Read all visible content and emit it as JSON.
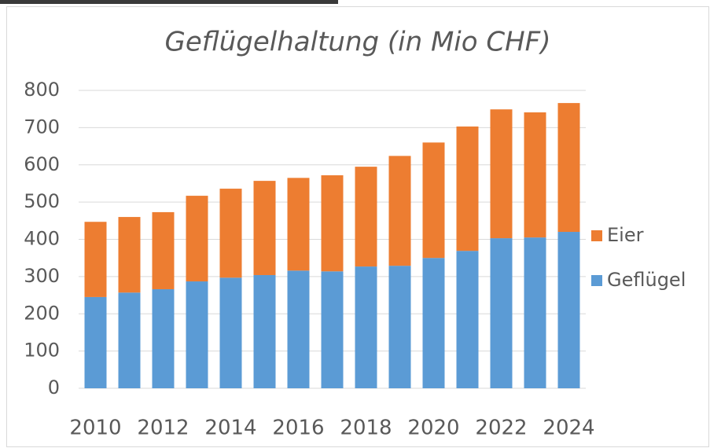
{
  "chart_data": {
    "type": "stacked_bar",
    "title": "Geflügelhaltung (in Mio CHF)",
    "categories": [
      "2010",
      null,
      "2012",
      null,
      "2014",
      null,
      "2016",
      null,
      "2018",
      null,
      "2020",
      null,
      "2022",
      null,
      "2024"
    ],
    "series": [
      {
        "name": "Geflügel",
        "color": "#5b9bd5",
        "values": [
          245,
          257,
          266,
          287,
          297,
          304,
          316,
          314,
          327,
          329,
          350,
          369,
          403,
          405,
          420
        ]
      },
      {
        "name": "Eier",
        "color": "#ed7d31",
        "values": [
          202,
          203,
          207,
          230,
          239,
          253,
          249,
          258,
          268,
          295,
          310,
          334,
          346,
          336,
          346
        ]
      }
    ],
    "ylim": [
      0,
      800
    ],
    "yticks": [
      0,
      100,
      200,
      300,
      400,
      500,
      600,
      700,
      800
    ],
    "grid": true,
    "legend": "right"
  }
}
